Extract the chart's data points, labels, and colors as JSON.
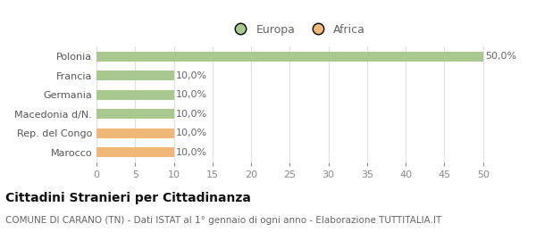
{
  "categories": [
    "Polonia",
    "Francia",
    "Germania",
    "Macedonia d/N.",
    "Rep. del Congo",
    "Marocco"
  ],
  "values": [
    50.0,
    10.0,
    10.0,
    10.0,
    10.0,
    10.0
  ],
  "bar_colors": [
    "#a8c890",
    "#a8c890",
    "#a8c890",
    "#a8c890",
    "#f0b878",
    "#f0b878"
  ],
  "label_texts": [
    "50,0%",
    "10,0%",
    "10,0%",
    "10,0%",
    "10,0%",
    "10,0%"
  ],
  "legend_labels": [
    "Europa",
    "Africa"
  ],
  "legend_colors": [
    "#a8c890",
    "#f0b878"
  ],
  "xlim": [
    0,
    52
  ],
  "xticks": [
    0,
    5,
    10,
    15,
    20,
    25,
    30,
    35,
    40,
    45,
    50
  ],
  "title": "Cittadini Stranieri per Cittadinanza",
  "subtitle": "COMUNE DI CARANO (TN) - Dati ISTAT al 1° gennaio di ogni anno - Elaborazione TUTTITALIA.IT",
  "bg_color": "#ffffff",
  "grid_color": "#e0e0e0",
  "bar_height": 0.5,
  "title_fontsize": 10,
  "subtitle_fontsize": 7.5,
  "tick_label_fontsize": 8,
  "bar_label_fontsize": 8,
  "ytick_fontsize": 8
}
